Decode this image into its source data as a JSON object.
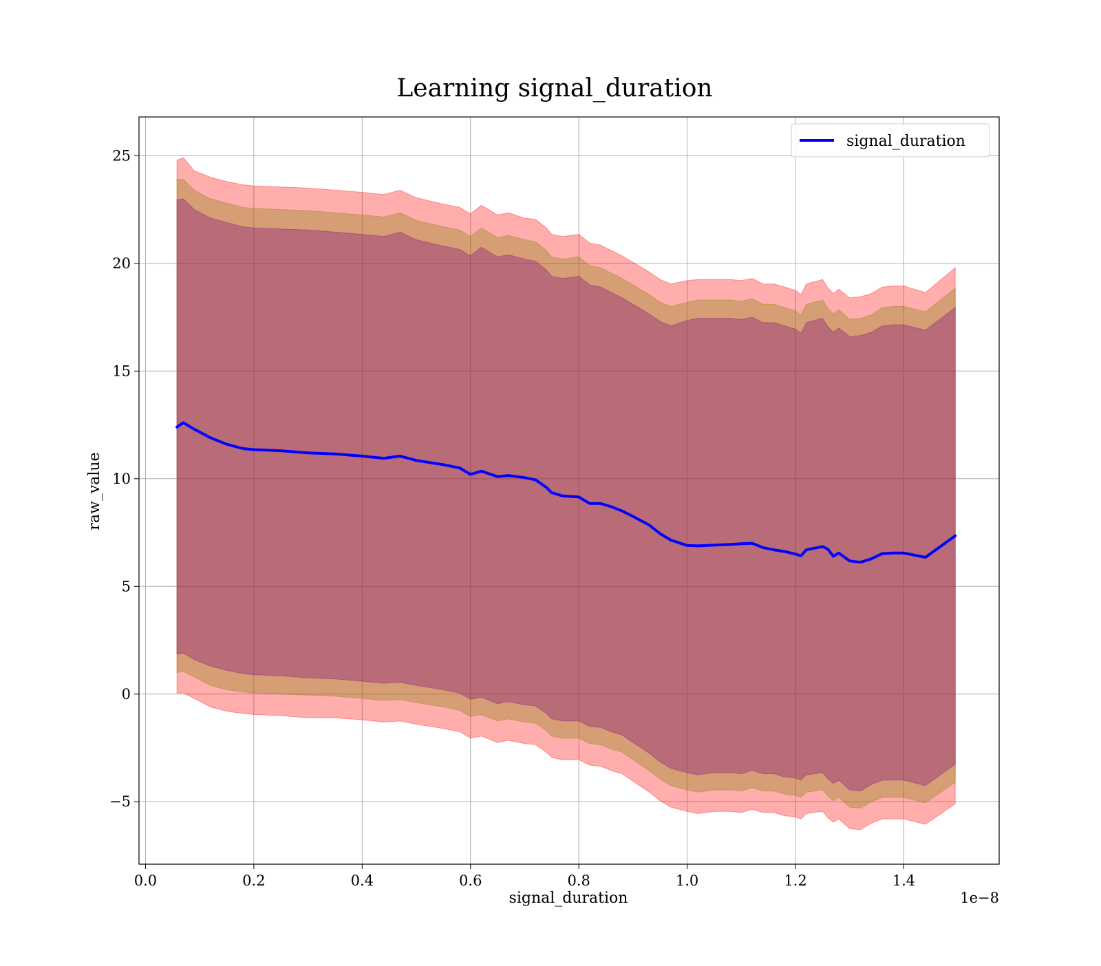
{
  "chart_data": {
    "type": "line",
    "title": "Learning signal_duration",
    "xlabel": "signal_duration",
    "ylabel": "raw_value",
    "x_offset_label": "1e−8",
    "xlim": [
      -0.012,
      1.576
    ],
    "ylim": [
      -7.9,
      26.8
    ],
    "x_ticks": [
      0.0,
      0.2,
      0.4,
      0.6,
      0.8,
      1.0,
      1.2,
      1.4
    ],
    "x_tick_labels": [
      "0.0",
      "0.2",
      "0.4",
      "0.6",
      "0.8",
      "1.0",
      "1.2",
      "1.4"
    ],
    "y_ticks": [
      -5,
      0,
      5,
      10,
      15,
      20,
      25
    ],
    "y_tick_labels": [
      "−5",
      "0",
      "5",
      "10",
      "15",
      "20",
      "25"
    ],
    "grid": true,
    "legend_position": "top-right",
    "legend": [
      "signal_duration"
    ],
    "colors": {
      "line": "#0000ff",
      "band_outer": "#ff0000",
      "band_middle": "#808000",
      "band_inner": "#800080",
      "band_outer_opacity": 0.32,
      "band_middle_opacity": 0.32,
      "band_inner_opacity": 0.32
    },
    "series": [
      {
        "name": "signal_duration",
        "x": [
          0.058,
          0.07,
          0.09,
          0.12,
          0.15,
          0.18,
          0.2,
          0.25,
          0.3,
          0.35,
          0.4,
          0.44,
          0.47,
          0.5,
          0.55,
          0.58,
          0.6,
          0.62,
          0.65,
          0.67,
          0.7,
          0.72,
          0.74,
          0.75,
          0.77,
          0.8,
          0.82,
          0.84,
          0.86,
          0.88,
          0.9,
          0.93,
          0.95,
          0.97,
          1.0,
          1.02,
          1.05,
          1.08,
          1.1,
          1.12,
          1.14,
          1.16,
          1.18,
          1.2,
          1.21,
          1.22,
          1.25,
          1.26,
          1.27,
          1.28,
          1.3,
          1.32,
          1.34,
          1.36,
          1.38,
          1.4,
          1.44,
          1.495
        ],
        "mean": [
          12.4,
          12.6,
          12.3,
          11.9,
          11.6,
          11.4,
          11.35,
          11.3,
          11.2,
          11.15,
          11.05,
          10.95,
          11.05,
          10.85,
          10.65,
          10.5,
          10.2,
          10.35,
          10.1,
          10.15,
          10.05,
          9.95,
          9.6,
          9.35,
          9.2,
          9.15,
          8.85,
          8.85,
          8.7,
          8.5,
          8.25,
          7.85,
          7.45,
          7.15,
          6.9,
          6.88,
          6.92,
          6.95,
          6.98,
          7.0,
          6.8,
          6.7,
          6.62,
          6.5,
          6.42,
          6.7,
          6.85,
          6.72,
          6.4,
          6.55,
          6.18,
          6.12,
          6.28,
          6.52,
          6.55,
          6.55,
          6.35,
          7.35
        ],
        "outer_upper": [
          24.8,
          24.9,
          24.3,
          24.0,
          23.8,
          23.65,
          23.6,
          23.55,
          23.5,
          23.4,
          23.3,
          23.2,
          23.4,
          23.05,
          22.75,
          22.6,
          22.3,
          22.7,
          22.25,
          22.35,
          22.1,
          22.05,
          21.65,
          21.35,
          21.25,
          21.35,
          20.95,
          20.85,
          20.6,
          20.35,
          20.05,
          19.6,
          19.25,
          19.05,
          19.2,
          19.25,
          19.25,
          19.25,
          19.2,
          19.3,
          19.05,
          19.05,
          18.9,
          18.75,
          18.55,
          19.05,
          19.25,
          18.85,
          18.6,
          18.8,
          18.4,
          18.45,
          18.6,
          18.9,
          18.95,
          18.95,
          18.65,
          19.8
        ],
        "outer_lower": [
          0.05,
          0.05,
          -0.2,
          -0.6,
          -0.8,
          -0.9,
          -0.95,
          -1.0,
          -1.1,
          -1.1,
          -1.2,
          -1.3,
          -1.25,
          -1.4,
          -1.6,
          -1.75,
          -2.05,
          -1.95,
          -2.25,
          -2.15,
          -2.3,
          -2.35,
          -2.7,
          -2.95,
          -3.05,
          -3.05,
          -3.3,
          -3.35,
          -3.55,
          -3.7,
          -4.05,
          -4.55,
          -4.95,
          -5.25,
          -5.45,
          -5.55,
          -5.45,
          -5.45,
          -5.5,
          -5.35,
          -5.5,
          -5.5,
          -5.65,
          -5.7,
          -5.8,
          -5.55,
          -5.45,
          -5.75,
          -5.95,
          -5.8,
          -6.25,
          -6.3,
          -6.0,
          -5.8,
          -5.8,
          -5.8,
          -6.05,
          -5.1
        ],
        "middle_upper": [
          23.9,
          23.9,
          23.4,
          23.0,
          22.8,
          22.6,
          22.55,
          22.5,
          22.45,
          22.35,
          22.25,
          22.15,
          22.35,
          22.0,
          21.7,
          21.55,
          21.25,
          21.65,
          21.2,
          21.3,
          21.1,
          21.0,
          20.6,
          20.3,
          20.2,
          20.3,
          19.9,
          19.8,
          19.55,
          19.3,
          19.0,
          18.55,
          18.2,
          18.0,
          18.2,
          18.3,
          18.3,
          18.3,
          18.25,
          18.35,
          18.1,
          18.1,
          17.95,
          17.8,
          17.6,
          18.1,
          18.3,
          17.9,
          17.65,
          17.85,
          17.4,
          17.45,
          17.6,
          17.95,
          18.0,
          18.0,
          17.75,
          18.85
        ],
        "middle_lower": [
          1.0,
          1.05,
          0.8,
          0.4,
          0.2,
          0.1,
          0.05,
          0.0,
          -0.05,
          -0.1,
          -0.2,
          -0.3,
          -0.25,
          -0.4,
          -0.6,
          -0.75,
          -1.05,
          -0.95,
          -1.25,
          -1.15,
          -1.3,
          -1.35,
          -1.7,
          -1.95,
          -2.05,
          -2.05,
          -2.3,
          -2.35,
          -2.55,
          -2.7,
          -3.05,
          -3.55,
          -3.95,
          -4.25,
          -4.45,
          -4.55,
          -4.45,
          -4.45,
          -4.5,
          -4.35,
          -4.5,
          -4.5,
          -4.65,
          -4.7,
          -4.8,
          -4.55,
          -4.45,
          -4.75,
          -4.95,
          -4.8,
          -5.25,
          -5.3,
          -5.0,
          -4.8,
          -4.8,
          -4.8,
          -5.05,
          -4.1
        ],
        "inner_upper": [
          22.95,
          23.0,
          22.5,
          22.1,
          21.9,
          21.7,
          21.65,
          21.6,
          21.55,
          21.45,
          21.35,
          21.25,
          21.45,
          21.1,
          20.8,
          20.65,
          20.35,
          20.75,
          20.3,
          20.4,
          20.2,
          20.1,
          19.7,
          19.4,
          19.3,
          19.4,
          19.0,
          18.9,
          18.65,
          18.4,
          18.1,
          17.65,
          17.3,
          17.1,
          17.35,
          17.45,
          17.45,
          17.45,
          17.4,
          17.5,
          17.25,
          17.25,
          17.1,
          16.95,
          16.75,
          17.25,
          17.45,
          17.05,
          16.8,
          17.0,
          16.6,
          16.65,
          16.8,
          17.1,
          17.15,
          17.15,
          16.9,
          17.95
        ],
        "inner_lower": [
          1.85,
          1.9,
          1.6,
          1.3,
          1.1,
          0.95,
          0.9,
          0.85,
          0.75,
          0.7,
          0.6,
          0.5,
          0.55,
          0.4,
          0.2,
          0.05,
          -0.25,
          -0.15,
          -0.45,
          -0.35,
          -0.5,
          -0.55,
          -0.9,
          -1.15,
          -1.25,
          -1.25,
          -1.5,
          -1.55,
          -1.75,
          -1.9,
          -2.25,
          -2.75,
          -3.15,
          -3.45,
          -3.65,
          -3.75,
          -3.65,
          -3.65,
          -3.7,
          -3.55,
          -3.7,
          -3.7,
          -3.85,
          -3.9,
          -4.0,
          -3.75,
          -3.65,
          -3.95,
          -4.15,
          -4.0,
          -4.45,
          -4.5,
          -4.2,
          -4.0,
          -4.0,
          -4.0,
          -4.25,
          -3.25
        ]
      }
    ]
  }
}
